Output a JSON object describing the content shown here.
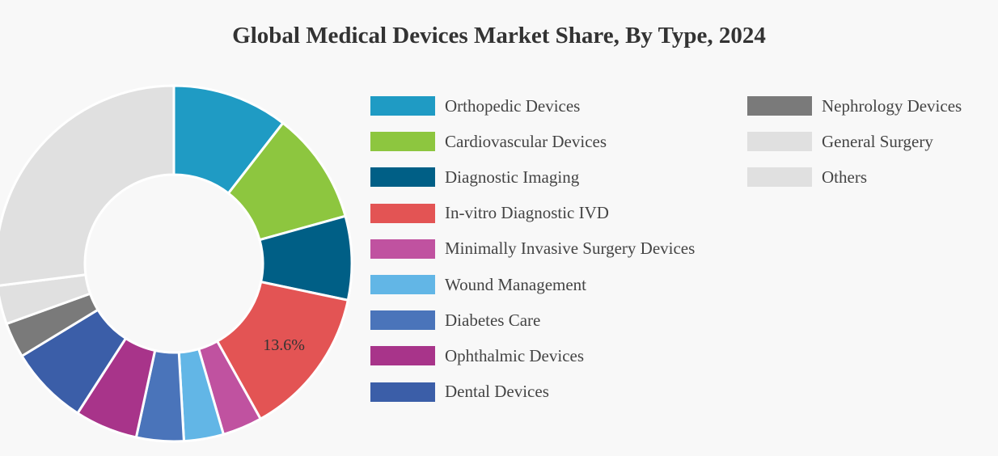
{
  "chart_data": {
    "type": "pie",
    "donut": true,
    "title": "Global Medical Devices Market Share, By Type, 2024",
    "slices": [
      {
        "label": "Orthopedic Devices",
        "value": 10.5,
        "color": "#1f9bc4"
      },
      {
        "label": "Cardiovascular Devices",
        "value": 10.2,
        "color": "#8dc63f"
      },
      {
        "label": "Diagnostic Imaging",
        "value": 7.6,
        "color": "#005f86"
      },
      {
        "label": "In-vitro Diagnostic IVD",
        "value": 13.6,
        "color": "#e35454"
      },
      {
        "label": "Minimally Invasive Surgery Devices",
        "value": 3.6,
        "color": "#c052a0"
      },
      {
        "label": "Wound Management",
        "value": 3.6,
        "color": "#62b6e6"
      },
      {
        "label": "Diabetes Care",
        "value": 4.3,
        "color": "#4a74ba"
      },
      {
        "label": "Ophthalmic Devices",
        "value": 5.7,
        "color": "#a8348a"
      },
      {
        "label": "Dental Devices",
        "value": 7.2,
        "color": "#3b5ea8"
      },
      {
        "label": "Nephrology Devices",
        "value": 3.2,
        "color": "#7a7a7a"
      },
      {
        "label": "General Surgery",
        "value": 3.5,
        "color": "#e0e0e0"
      },
      {
        "label": "Others",
        "value": 27.0,
        "color": "#e0e0e0"
      }
    ],
    "data_labels": [
      {
        "slice": "In-vitro Diagnostic IVD",
        "text": "13.6%"
      }
    ],
    "legend_position": "right"
  }
}
